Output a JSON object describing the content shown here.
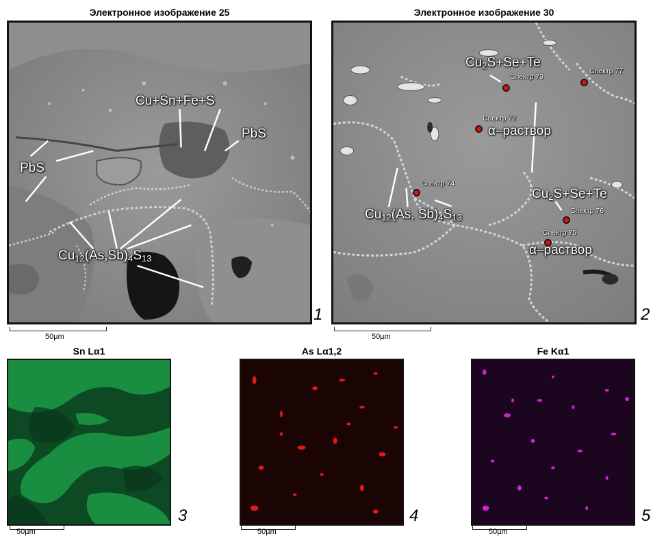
{
  "panel1": {
    "title": "Электронное изображение 25",
    "number": "1",
    "scale": "50µm",
    "labels": {
      "cu_sn_fe_s": "Cu+Sn+Fe+S",
      "pbs_right": "PbS",
      "pbs_left": "PbS",
      "tennantite_pre": "Cu",
      "tennantite_sub1": "12",
      "tennantite_mid": "(As,Sb)",
      "tennantite_sub2": "4",
      "tennantite_s": "S",
      "tennantite_sub3": "13"
    }
  },
  "panel2": {
    "title": "Электронное изображение 30",
    "number": "2",
    "scale": "50µm",
    "labels": {
      "cu2s_top_pre": "Cu",
      "cu2s_top_sub": "2",
      "cu2s_top_post": "S+Se+Te",
      "alpha_top": "α–раствор",
      "cu2s_bot_pre": "Cu",
      "cu2s_bot_sub": "2",
      "cu2s_bot_post": "S+Se+Te",
      "alpha_bot": "α–раствор",
      "tenn_pre": "Cu",
      "tenn_sub1": "12",
      "tenn_mid": "(As, Sb)",
      "tenn_sub2": "4",
      "tenn_s": "S",
      "tenn_sub3": "13"
    },
    "spectra": {
      "s73": "Спектр 73",
      "s77": "Спектр 77",
      "s72": "Спектр 72",
      "s74": "Спектр 74",
      "s76": "Спектр 76",
      "s75": "Спектр 75"
    }
  },
  "panel3": {
    "title": "Sn Lα1",
    "number": "3",
    "scale": "50µm",
    "color": "#1ea04a"
  },
  "panel4": {
    "title": "As Lα1,2",
    "number": "4",
    "scale": "50µm",
    "color": "#e01818"
  },
  "panel5": {
    "title": "Fe Kα1",
    "number": "5",
    "scale": "50µm",
    "color": "#d020d0"
  }
}
